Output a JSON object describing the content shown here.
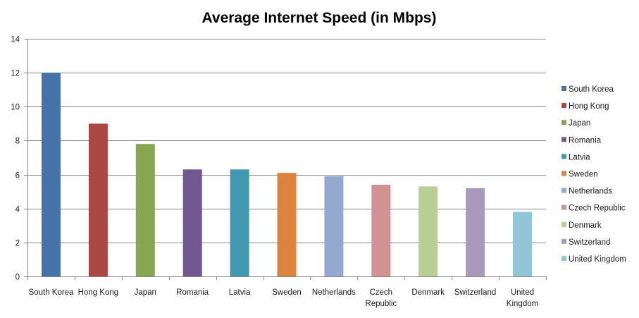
{
  "chart_data": {
    "type": "bar",
    "title": "Average Internet Speed (in Mbps)",
    "xlabel": "",
    "ylabel": "",
    "ylim": [
      0,
      14
    ],
    "yticks": [
      0,
      2,
      4,
      6,
      8,
      10,
      12,
      14
    ],
    "grid": true,
    "legend_position": "right",
    "categories": [
      "South Korea",
      "Hong Kong",
      "Japan",
      "Romania",
      "Latvia",
      "Sweden",
      "Netherlands",
      "Czech Republic",
      "Denmark",
      "Switzerland",
      "United Kingdom"
    ],
    "category_label_lines": [
      [
        "South Korea"
      ],
      [
        "Hong Kong"
      ],
      [
        "Japan"
      ],
      [
        "Romania"
      ],
      [
        "Latvia"
      ],
      [
        "Sweden"
      ],
      [
        "Netherlands"
      ],
      [
        "Czech",
        "Republic"
      ],
      [
        "Denmark"
      ],
      [
        "Switzerland"
      ],
      [
        "United",
        "Kingdom"
      ]
    ],
    "values": [
      12,
      9,
      7.8,
      6.3,
      6.3,
      6.1,
      5.9,
      5.4,
      5.3,
      5.2,
      3.8
    ],
    "colors": [
      "#4572a7",
      "#aa4643",
      "#89a54e",
      "#71588f",
      "#4198af",
      "#db843d",
      "#93a9cf",
      "#d19392",
      "#b9cd96",
      "#a99bbd",
      "#92c5d6"
    ],
    "legend": [
      "South Korea",
      "Hong Kong",
      "Japan",
      "Romania",
      "Latvia",
      "Sweden",
      "Netherlands",
      "Czech Republic",
      "Denmark",
      "Switzerland",
      "United Kingdom"
    ]
  }
}
